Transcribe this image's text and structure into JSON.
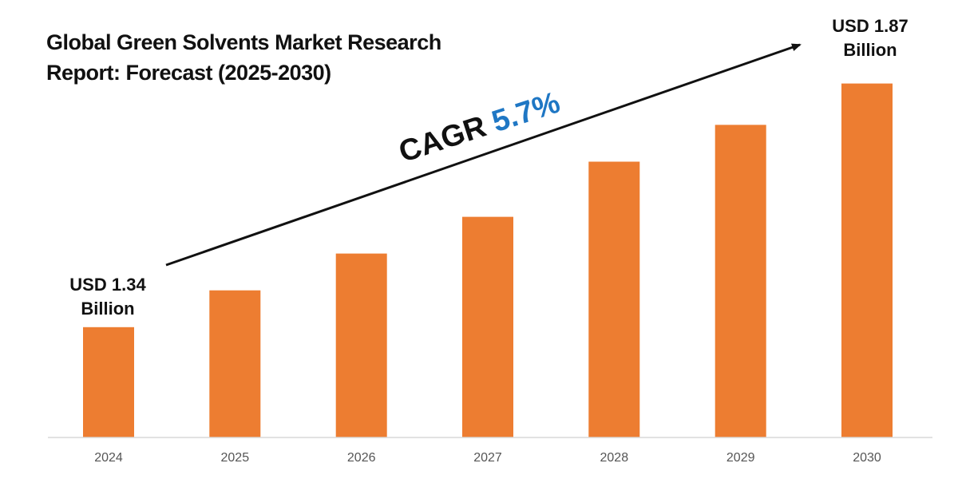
{
  "title_lines": [
    "Global Green Solvents Market Research",
    "Report: Forecast (2025-2030)"
  ],
  "callouts": {
    "start": [
      "USD 1.34",
      "Billion"
    ],
    "end": [
      "USD 1.87",
      "Billion"
    ]
  },
  "cagr": {
    "label": "CAGR",
    "rate": "5.7%"
  },
  "colors": {
    "bar": "#ed7d31",
    "rate": "#1f77c4",
    "axis": "#d9d9d9"
  },
  "chart_data": {
    "type": "bar",
    "categories": [
      "2024",
      "2025",
      "2026",
      "2027",
      "2028",
      "2029",
      "2030"
    ],
    "values": [
      1.34,
      1.42,
      1.5,
      1.58,
      1.7,
      1.78,
      1.87
    ],
    "title": "Global Green Solvents Market Research Report: Forecast (2025-2030)",
    "xlabel": "",
    "ylabel": "",
    "ylim": [
      1.1,
      1.93
    ],
    "grid": false,
    "legend": "none"
  }
}
